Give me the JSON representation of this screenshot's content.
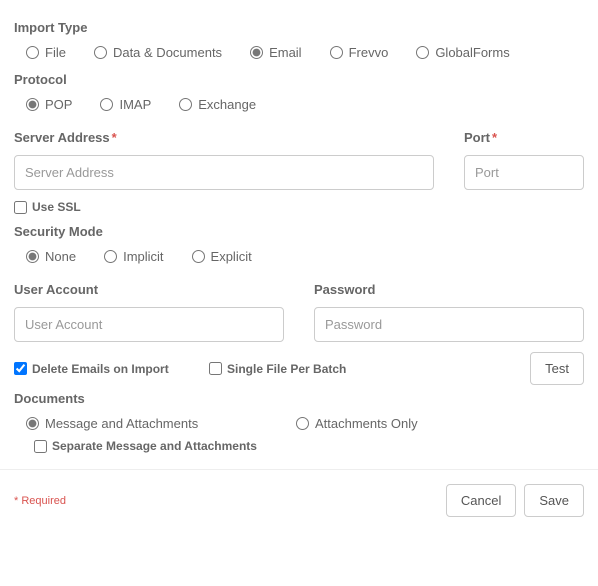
{
  "import_type": {
    "label": "Import Type",
    "options": [
      "File",
      "Data & Documents",
      "Email",
      "Frevvo",
      "GlobalForms"
    ],
    "selected_index": 2
  },
  "protocol": {
    "label": "Protocol",
    "options": [
      "POP",
      "IMAP",
      "Exchange"
    ],
    "selected_index": 0
  },
  "server_address": {
    "label": "Server Address",
    "required": true,
    "placeholder": "Server Address",
    "value": ""
  },
  "port": {
    "label": "Port",
    "required": true,
    "placeholder": "Port",
    "value": ""
  },
  "use_ssl": {
    "label": "Use SSL",
    "checked": false
  },
  "security_mode": {
    "label": "Security Mode",
    "options": [
      "None",
      "Implicit",
      "Explicit"
    ],
    "selected_index": 0
  },
  "user_account": {
    "label": "User Account",
    "placeholder": "User Account",
    "value": ""
  },
  "password": {
    "label": "Password",
    "placeholder": "Password",
    "value": ""
  },
  "delete_emails": {
    "label": "Delete Emails on Import",
    "checked": true
  },
  "single_file": {
    "label": "Single File Per Batch",
    "checked": false
  },
  "test_button": "Test",
  "documents": {
    "label": "Documents",
    "options": [
      "Message and Attachments",
      "Attachments Only"
    ],
    "selected_index": 0,
    "separate": {
      "label": "Separate Message and Attachments",
      "checked": false
    }
  },
  "required_note": "* Required",
  "cancel_button": "Cancel",
  "save_button": "Save"
}
